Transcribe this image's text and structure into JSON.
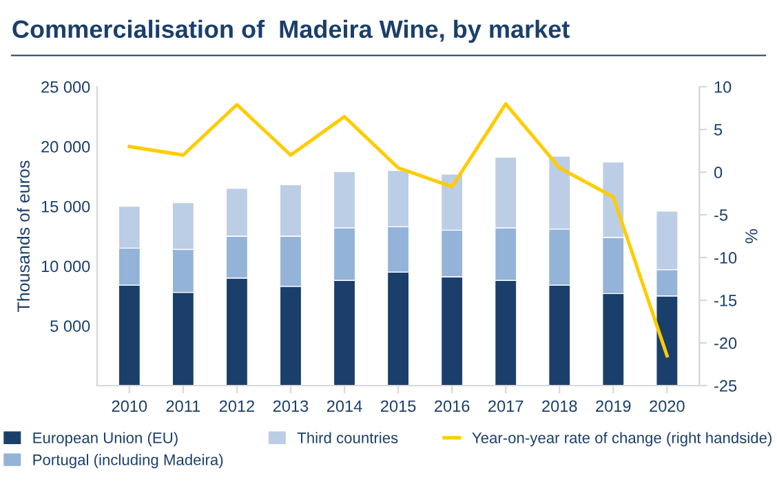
{
  "chart_data": {
    "type": "bar",
    "title": "Commercialisation of  Madeira Wine, by market",
    "ylabel": "Thousands of euros",
    "y2label": "%",
    "categories": [
      "2010",
      "2011",
      "2012",
      "2013",
      "2014",
      "2015",
      "2016",
      "2017",
      "2018",
      "2019",
      "2020"
    ],
    "stacked": true,
    "grid": false,
    "legend": "bottom",
    "series": [
      {
        "name": "European Union (EU)",
        "color": "#1a3f6b",
        "values": [
          8400,
          7800,
          9000,
          8300,
          8800,
          9500,
          9100,
          8800,
          8400,
          7700,
          7500
        ]
      },
      {
        "name": "Portugal (including Madeira)",
        "color": "#94b3d8",
        "values": [
          3100,
          3600,
          3500,
          4200,
          4400,
          3800,
          3900,
          4400,
          4700,
          4700,
          2200
        ]
      },
      {
        "name": "Third countries",
        "color": "#bccde6",
        "values": [
          3500,
          3900,
          4000,
          4300,
          4700,
          4700,
          4700,
          5900,
          6100,
          6300,
          4900
        ]
      },
      {
        "name": "Year-on-year rate of change (right handside)",
        "type": "line",
        "axis": "y2",
        "color": "#ffcc00",
        "values": [
          3.0,
          2.0,
          7.9,
          2.0,
          6.5,
          0.5,
          -1.7,
          8.0,
          0.5,
          -2.9,
          -21.5
        ]
      }
    ],
    "ylim": [
      0,
      25000
    ],
    "yticks": [
      {
        "value": 5000,
        "label": "5 000"
      },
      {
        "value": 10000,
        "label": "10 000"
      },
      {
        "value": 15000,
        "label": "15 000"
      },
      {
        "value": 20000,
        "label": "20 000"
      },
      {
        "value": 25000,
        "label": "25 000"
      }
    ],
    "y2lim": [
      -25,
      10
    ],
    "y2ticks": [
      -25,
      -20,
      -15,
      -10,
      -5,
      0,
      5,
      10
    ]
  }
}
